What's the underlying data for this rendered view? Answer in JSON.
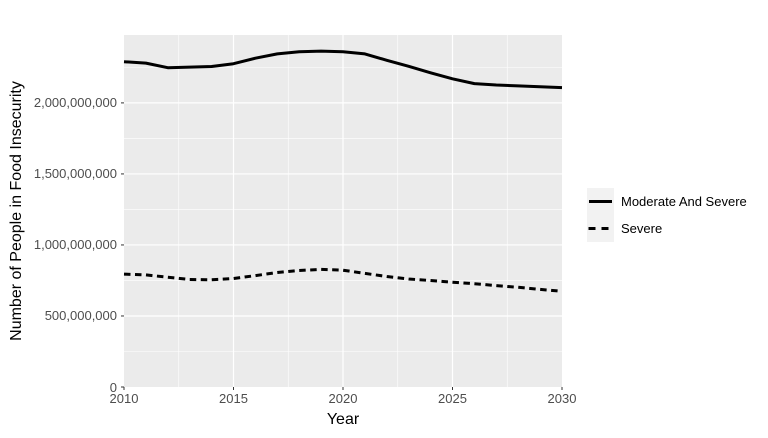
{
  "figure": {
    "background": "#ffffff",
    "panel_background": "#ebebeb",
    "grid_color": "#ffffff",
    "tick_color": "#333333",
    "tick_label_color": "#4d4d4d",
    "axis_title_color": "#000000",
    "legend_key_background": "#f2f2f2"
  },
  "chart_data": {
    "type": "line",
    "title": "",
    "xlabel": "Year",
    "ylabel": "Number of People in Food Insecurity",
    "grid": true,
    "legend_position": "right",
    "xlim": [
      2010,
      2030
    ],
    "ylim": [
      0,
      2478000000
    ],
    "x": [
      2010,
      2011,
      2012,
      2013,
      2014,
      2015,
      2016,
      2017,
      2018,
      2019,
      2020,
      2021,
      2022,
      2023,
      2024,
      2025,
      2026,
      2027,
      2028,
      2029,
      2030
    ],
    "series": [
      {
        "name": "Moderate And Severe",
        "linetype": "solid",
        "color": "#000000",
        "values": [
          2290000000,
          2280000000,
          2248000000,
          2252000000,
          2256000000,
          2276000000,
          2315000000,
          2345000000,
          2360000000,
          2365000000,
          2360000000,
          2345000000,
          2300000000,
          2258000000,
          2212000000,
          2170000000,
          2136000000,
          2126000000,
          2120000000,
          2114000000,
          2108000000
        ]
      },
      {
        "name": "Severe",
        "linetype": "dashed",
        "color": "#000000",
        "values": [
          795000000,
          789000000,
          773000000,
          757000000,
          755000000,
          764000000,
          784000000,
          806000000,
          820000000,
          828000000,
          822000000,
          800000000,
          778000000,
          760000000,
          750000000,
          738000000,
          727000000,
          714000000,
          702000000,
          687000000,
          674000000
        ]
      }
    ],
    "x_ticks": {
      "values": [
        2010,
        2015,
        2020,
        2025,
        2030
      ],
      "labels": [
        "2010",
        "2015",
        "2020",
        "2025",
        "2030"
      ]
    },
    "y_ticks": {
      "values": [
        0,
        500000000,
        1000000000,
        1500000000,
        2000000000
      ],
      "labels": [
        "0",
        "500,000,000",
        "1,000,000,000",
        "1,500,000,000",
        "2,000,000,000"
      ]
    },
    "x_minor": [
      2012.5,
      2017.5,
      2022.5,
      2027.5
    ],
    "y_minor": [
      250000000,
      750000000,
      1250000000,
      1750000000,
      2250000000
    ]
  }
}
